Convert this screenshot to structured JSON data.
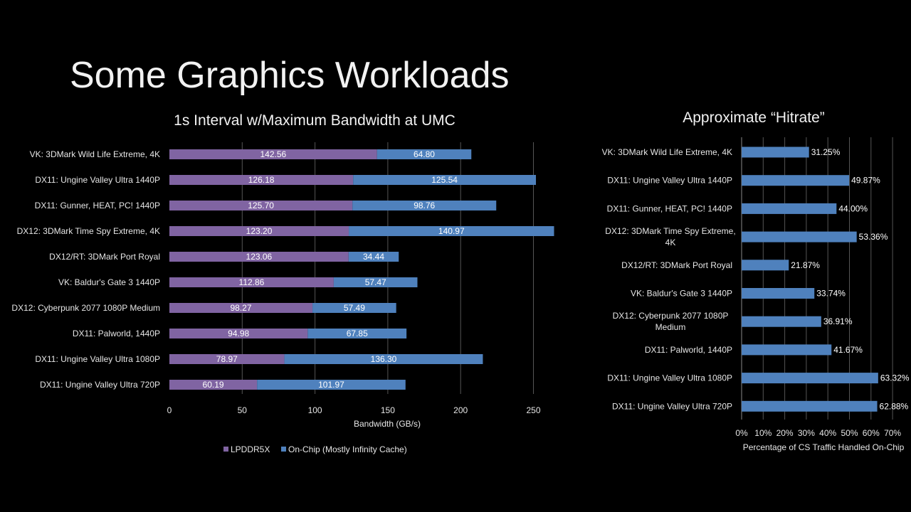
{
  "slide": {
    "title": "Some Graphics Workloads"
  },
  "chart_data": [
    {
      "type": "bar",
      "orientation": "horizontal",
      "stacked": true,
      "title": "1s Interval w/Maximum Bandwidth at UMC",
      "xlabel": "Bandwidth (GB/s)",
      "ylabel": "",
      "xlim": [
        0,
        265
      ],
      "xticks": [
        0,
        50,
        100,
        150,
        200,
        250
      ],
      "grid": true,
      "legend_position": "bottom",
      "categories": [
        "VK: 3DMark Wild Life Extreme, 4K",
        "DX11: Ungine Valley Ultra 1440P",
        "DX11: Gunner, HEAT, PC! 1440P",
        "DX12: 3DMark Time Spy Extreme, 4K",
        "DX12/RT: 3DMark Port Royal",
        "VK: Baldur's Gate 3 1440P",
        "DX12: Cyberpunk 2077 1080P Medium",
        "DX11: Palworld, 1440P",
        "DX11: Ungine Valley Ultra 1080P",
        "DX11: Ungine Valley Ultra 720P"
      ],
      "series": [
        {
          "name": "LPDDR5X",
          "color": "#8064a2",
          "values": [
            142.56,
            126.18,
            125.7,
            123.2,
            123.06,
            112.86,
            98.27,
            94.98,
            78.97,
            60.19
          ],
          "labels": [
            "142.56",
            "126.18",
            "125.70",
            "123.20",
            "123.06",
            "112.86",
            "98.27",
            "94.98",
            "78.97",
            "60.19"
          ]
        },
        {
          "name": "On-Chip (Mostly Infinity Cache)",
          "color": "#4f81bd",
          "values": [
            64.8,
            125.54,
            98.76,
            140.97,
            34.44,
            57.47,
            57.49,
            67.85,
            136.3,
            101.97
          ],
          "labels": [
            "64.80",
            "125.54",
            "98.76",
            "140.97",
            "34.44",
            "57.47",
            "57.49",
            "67.85",
            "136.30",
            "101.97"
          ]
        }
      ]
    },
    {
      "type": "bar",
      "orientation": "horizontal",
      "stacked": false,
      "title": "Approximate “Hitrate”",
      "xlabel": "Percentage of CS Traffic Handled On-Chip",
      "ylabel": "",
      "xlim": [
        0,
        70
      ],
      "xticks": [
        "0%",
        "10%",
        "20%",
        "30%",
        "40%",
        "50%",
        "60%",
        "70%"
      ],
      "grid": true,
      "categories": [
        [
          "VK: 3DMark Wild Life Extreme, 4K"
        ],
        [
          "DX11: Ungine Valley Ultra 1440P"
        ],
        [
          "DX11: Gunner, HEAT, PC! 1440P"
        ],
        [
          "DX12: 3DMark Time Spy Extreme,",
          "4K"
        ],
        [
          "DX12/RT: 3DMark Port Royal"
        ],
        [
          "VK: Baldur's Gate 3 1440P"
        ],
        [
          "DX12: Cyberpunk 2077 1080P",
          "Medium"
        ],
        [
          "DX11: Palworld, 1440P"
        ],
        [
          "DX11: Ungine Valley Ultra 1080P"
        ],
        [
          "DX11: Ungine Valley Ultra 720P"
        ]
      ],
      "series": [
        {
          "color": "#4f81bd",
          "values": [
            31.25,
            49.87,
            44.0,
            53.36,
            21.87,
            33.74,
            36.91,
            41.67,
            63.32,
            62.88
          ],
          "labels": [
            "31.25%",
            "49.87%",
            "44.00%",
            "53.36%",
            "21.87%",
            "33.74%",
            "36.91%",
            "41.67%",
            "63.32%",
            "62.88%"
          ]
        }
      ]
    }
  ]
}
